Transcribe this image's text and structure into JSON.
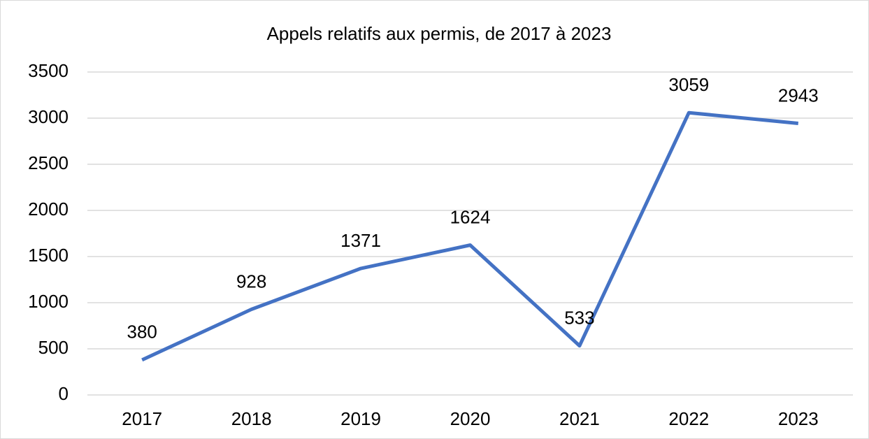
{
  "chart_data": {
    "type": "line",
    "title": "Appels relatifs aux permis, de 2017 à 2023",
    "categories": [
      "2017",
      "2018",
      "2019",
      "2020",
      "2021",
      "2022",
      "2023"
    ],
    "values": [
      380,
      928,
      1371,
      1624,
      533,
      3059,
      2943
    ],
    "color": "#4472c4",
    "ylim": [
      0,
      3500
    ],
    "yticks": [
      0,
      500,
      1000,
      1500,
      2000,
      2500,
      3000,
      3500
    ],
    "grid": true
  }
}
